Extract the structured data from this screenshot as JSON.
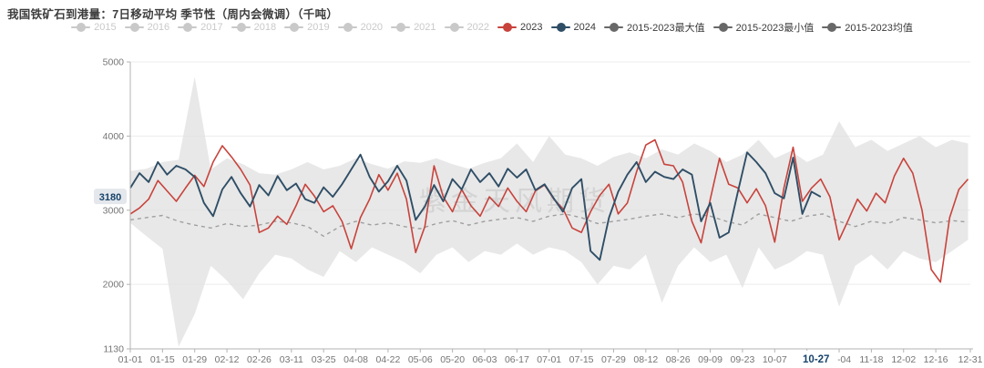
{
  "title": "我国铁矿石到港量：7日移动平均 季节性（周内会微调）（千吨）",
  "watermark": "紫金天风期货",
  "colors": {
    "red_2023": "#c8433c",
    "navy_2024": "#2f4e66",
    "band_fill": "#e2e2e2",
    "mean_dash": "#9f9f9f",
    "grid": "#ececec",
    "axis_line": "#b3b3b3",
    "axis_label": "#757575",
    "highlight_text": "#17436b",
    "highlight_y_bg": "#e4e7ec",
    "highlight_x_bg": "#ffffff",
    "legend_inactive": "#c9c9c9",
    "legend_stat_marker": "#686868",
    "legend_text_active": "#3a3a3a"
  },
  "legend": {
    "items": [
      {
        "label": "2015",
        "state": "inactive"
      },
      {
        "label": "2016",
        "state": "inactive"
      },
      {
        "label": "2017",
        "state": "inactive"
      },
      {
        "label": "2018",
        "state": "inactive"
      },
      {
        "label": "2019",
        "state": "inactive"
      },
      {
        "label": "2020",
        "state": "inactive"
      },
      {
        "label": "2021",
        "state": "inactive"
      },
      {
        "label": "2022",
        "state": "inactive"
      },
      {
        "label": "2023",
        "state": "red"
      },
      {
        "label": "2024",
        "state": "navy"
      },
      {
        "label": "2015-2023最大值",
        "state": "stat"
      },
      {
        "label": "2015-2023最小值",
        "state": "stat"
      },
      {
        "label": "2015-2023均值",
        "state": "stat"
      }
    ]
  },
  "chart_data": {
    "type": "line",
    "title": "我国铁矿石到港量：7日移动平均 季节性（周内会微调）",
    "unit": "千吨",
    "x_axis": {
      "range": [
        "01-01",
        "12-31"
      ],
      "total_days": 366,
      "ticks": [
        {
          "day": 1,
          "label": "01-01"
        },
        {
          "day": 15,
          "label": "01-15"
        },
        {
          "day": 29,
          "label": "01-29"
        },
        {
          "day": 43,
          "label": "02-12"
        },
        {
          "day": 57,
          "label": "02-26"
        },
        {
          "day": 71,
          "label": "03-11"
        },
        {
          "day": 85,
          "label": "03-25"
        },
        {
          "day": 99,
          "label": "04-08"
        },
        {
          "day": 113,
          "label": "04-22"
        },
        {
          "day": 127,
          "label": "05-06"
        },
        {
          "day": 141,
          "label": "05-20"
        },
        {
          "day": 155,
          "label": "06-03"
        },
        {
          "day": 169,
          "label": "06-17"
        },
        {
          "day": 183,
          "label": "07-01"
        },
        {
          "day": 197,
          "label": "07-15"
        },
        {
          "day": 211,
          "label": "07-29"
        },
        {
          "day": 225,
          "label": "08-12"
        },
        {
          "day": 239,
          "label": "08-26"
        },
        {
          "day": 253,
          "label": "09-09"
        },
        {
          "day": 267,
          "label": "09-23"
        },
        {
          "day": 281,
          "label": "10-07"
        },
        {
          "day": 309,
          "label": "11-04"
        },
        {
          "day": 323,
          "label": "11-18"
        },
        {
          "day": 337,
          "label": "12-02"
        },
        {
          "day": 351,
          "label": "12-16"
        },
        {
          "day": 366,
          "label": "12-31"
        }
      ],
      "tick_marks_extra": [
        295
      ],
      "highlight": {
        "label": "10-27",
        "day": 299
      }
    },
    "y_axis": {
      "min": 1130,
      "max": 5000,
      "ticks": [
        1130,
        2000,
        3000,
        4000,
        5000
      ],
      "grid_at": [
        2000,
        3000,
        4000,
        5000
      ],
      "highlight": {
        "label": "3180",
        "value": 3180
      }
    },
    "series": [
      {
        "name": "2015-2023最大值",
        "role": "band_max",
        "day_start": 1,
        "day_step": 7,
        "values": [
          3530,
          3560,
          3650,
          3680,
          4800,
          3550,
          3700,
          3620,
          3500,
          3480,
          3550,
          3650,
          3550,
          3600,
          3700,
          3620,
          3560,
          3660,
          3640,
          3700,
          3620,
          3560,
          3640,
          3700,
          3900,
          3650,
          4000,
          3750,
          3700,
          3600,
          3720,
          3780,
          3700,
          3820,
          3750,
          3900,
          3800,
          3650,
          3750,
          3950,
          3700,
          3800,
          3650,
          3750,
          4200,
          3850,
          3950,
          3800,
          3900,
          4000,
          3850,
          3950,
          3900
        ]
      },
      {
        "name": "2015-2023最小值",
        "role": "band_min",
        "day_start": 1,
        "day_step": 7,
        "values": [
          2830,
          2650,
          2480,
          1160,
          1600,
          2250,
          2050,
          1800,
          2150,
          2400,
          2350,
          2200,
          2100,
          2450,
          2300,
          2500,
          2400,
          2300,
          2150,
          2400,
          2500,
          2300,
          2450,
          2400,
          2550,
          2400,
          2500,
          2450,
          2300,
          2000,
          2250,
          2200,
          2400,
          1750,
          2250,
          2500,
          2300,
          2400,
          1950,
          2500,
          2200,
          2300,
          2450,
          2400,
          1700,
          2250,
          2400,
          2200,
          2450,
          2350,
          2300,
          2450,
          2600
        ]
      },
      {
        "name": "2015-2023均值",
        "role": "mean",
        "day_start": 1,
        "day_step": 7,
        "values": [
          2870,
          2900,
          2930,
          2850,
          2800,
          2760,
          2820,
          2780,
          2800,
          2850,
          2830,
          2780,
          2650,
          2780,
          2850,
          2800,
          2830,
          2780,
          2750,
          2820,
          2860,
          2800,
          2850,
          2880,
          2900,
          2850,
          2920,
          2950,
          2900,
          2820,
          2850,
          2880,
          2920,
          2950,
          2900,
          2950,
          2920,
          2850,
          2800,
          2950,
          2900,
          2850,
          2920,
          2950,
          2850,
          2780,
          2850,
          2820,
          2900,
          2870,
          2830,
          2860,
          2840
        ]
      },
      {
        "name": "2023",
        "role": "line2023",
        "day_start": 1,
        "day_step": 4,
        "values": [
          2950,
          3030,
          3150,
          3400,
          3260,
          3120,
          3300,
          3470,
          3320,
          3650,
          3870,
          3720,
          3550,
          3340,
          2700,
          2760,
          2920,
          2810,
          3060,
          3350,
          3190,
          2980,
          3060,
          2850,
          2480,
          2900,
          3150,
          3480,
          3270,
          3500,
          3150,
          2430,
          2780,
          3600,
          3180,
          2980,
          3280,
          3060,
          2920,
          3180,
          3050,
          3300,
          3120,
          2980,
          3260,
          3340,
          3150,
          3020,
          2760,
          2700,
          2980,
          3200,
          3350,
          2950,
          3100,
          3520,
          3880,
          3950,
          3620,
          3600,
          3380,
          2850,
          2560,
          3150,
          3700,
          3350,
          3300,
          3100,
          3290,
          3060,
          2570,
          3300,
          3850,
          3120,
          3300,
          3420,
          3180,
          2600,
          2870,
          3150,
          2990,
          3230,
          3100,
          3460,
          3700,
          3500,
          3000,
          2200,
          2030,
          2900,
          3280,
          3420
        ]
      },
      {
        "name": "2024",
        "role": "line2024",
        "day_start": 1,
        "day_step": 4,
        "values": [
          3300,
          3500,
          3380,
          3650,
          3480,
          3600,
          3550,
          3450,
          3100,
          2920,
          3280,
          3450,
          3230,
          3050,
          3340,
          3200,
          3460,
          3270,
          3360,
          3150,
          3100,
          3310,
          3180,
          3350,
          3550,
          3750,
          3450,
          3250,
          3390,
          3600,
          3400,
          2870,
          3050,
          3340,
          3120,
          3420,
          3280,
          3550,
          3380,
          3500,
          3320,
          3560,
          3440,
          3550,
          3270,
          3350,
          3160,
          2980,
          3300,
          3420,
          2450,
          2330,
          2900,
          3250,
          3480,
          3650,
          3380,
          3520,
          3450,
          3420,
          3550,
          3480,
          2850,
          3100,
          2630,
          2700,
          3250,
          3780,
          3650,
          3500,
          3230,
          3160,
          3710,
          2950,
          3250,
          3180
        ]
      }
    ],
    "latest_point": {
      "date": "10-27",
      "value": 3180,
      "series": "2024"
    }
  }
}
